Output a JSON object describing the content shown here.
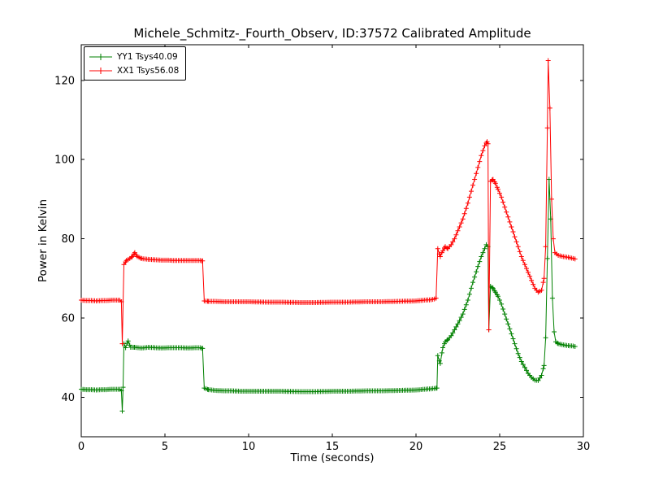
{
  "chart_data": {
    "type": "line",
    "title": "Michele_Schmitz-_Fourth_Observ, ID:37572 Calibrated Amplitude",
    "xlabel": "Time (seconds)",
    "ylabel": "Power in Kelvin",
    "xlim": [
      0,
      30
    ],
    "ylim": [
      30,
      129
    ],
    "x_ticks": [
      0,
      5,
      10,
      15,
      20,
      25,
      30
    ],
    "y_ticks": [
      40,
      60,
      80,
      100,
      120
    ],
    "grid": false,
    "legend_position": "upper-left",
    "marker": "+",
    "sample_interval_seconds": 0.1,
    "series": [
      {
        "name": "YY1 Tsys40.09",
        "color": "#008000",
        "points": [
          [
            0.0,
            42.0
          ],
          [
            0.3,
            41.9
          ],
          [
            0.6,
            41.9
          ],
          [
            0.9,
            41.8
          ],
          [
            1.2,
            41.9
          ],
          [
            1.5,
            41.9
          ],
          [
            1.8,
            42.0
          ],
          [
            2.1,
            42.0
          ],
          [
            2.3,
            42.0
          ],
          [
            2.4,
            41.6
          ],
          [
            2.45,
            36.5
          ],
          [
            2.5,
            42.5
          ],
          [
            2.55,
            53.5
          ],
          [
            2.65,
            52.5
          ],
          [
            2.8,
            54.2
          ],
          [
            2.95,
            52.6
          ],
          [
            3.2,
            52.6
          ],
          [
            3.6,
            52.4
          ],
          [
            4.0,
            52.6
          ],
          [
            4.4,
            52.5
          ],
          [
            4.8,
            52.4
          ],
          [
            5.2,
            52.5
          ],
          [
            5.6,
            52.5
          ],
          [
            6.0,
            52.5
          ],
          [
            6.4,
            52.4
          ],
          [
            6.8,
            52.5
          ],
          [
            7.1,
            52.5
          ],
          [
            7.25,
            52.3
          ],
          [
            7.35,
            42.3
          ],
          [
            7.6,
            41.9
          ],
          [
            8.0,
            41.7
          ],
          [
            8.5,
            41.6
          ],
          [
            9.0,
            41.6
          ],
          [
            9.5,
            41.5
          ],
          [
            10.0,
            41.5
          ],
          [
            11.0,
            41.5
          ],
          [
            12.0,
            41.5
          ],
          [
            13.0,
            41.4
          ],
          [
            14.0,
            41.4
          ],
          [
            15.0,
            41.5
          ],
          [
            16.0,
            41.5
          ],
          [
            17.0,
            41.6
          ],
          [
            18.0,
            41.6
          ],
          [
            19.0,
            41.7
          ],
          [
            20.0,
            41.8
          ],
          [
            20.5,
            42.0
          ],
          [
            20.9,
            42.1
          ],
          [
            21.1,
            42.2
          ],
          [
            21.25,
            42.3
          ],
          [
            21.3,
            50.5
          ],
          [
            21.45,
            48.5
          ],
          [
            21.6,
            52.5
          ],
          [
            21.75,
            54.0
          ],
          [
            21.9,
            54.5
          ],
          [
            22.1,
            55.5
          ],
          [
            22.3,
            57.0
          ],
          [
            22.5,
            58.5
          ],
          [
            22.8,
            61.0
          ],
          [
            23.1,
            64.5
          ],
          [
            23.4,
            69.0
          ],
          [
            23.7,
            73.0
          ],
          [
            23.9,
            75.5
          ],
          [
            24.1,
            77.5
          ],
          [
            24.2,
            78.5
          ],
          [
            24.3,
            78.0
          ],
          [
            24.35,
            57.0
          ],
          [
            24.45,
            68.0
          ],
          [
            24.6,
            67.5
          ],
          [
            24.75,
            66.5
          ],
          [
            24.9,
            65.5
          ],
          [
            25.1,
            63.5
          ],
          [
            25.3,
            61.0
          ],
          [
            25.5,
            58.5
          ],
          [
            25.7,
            56.0
          ],
          [
            25.9,
            53.5
          ],
          [
            26.1,
            51.0
          ],
          [
            26.3,
            49.0
          ],
          [
            26.5,
            47.5
          ],
          [
            26.7,
            46.0
          ],
          [
            26.9,
            45.0
          ],
          [
            27.1,
            44.3
          ],
          [
            27.3,
            44.2
          ],
          [
            27.5,
            45.5
          ],
          [
            27.65,
            48.0
          ],
          [
            27.75,
            55.0
          ],
          [
            27.85,
            75.0
          ],
          [
            27.95,
            95.0
          ],
          [
            28.05,
            85.0
          ],
          [
            28.15,
            65.0
          ],
          [
            28.25,
            56.5
          ],
          [
            28.35,
            54.0
          ],
          [
            28.5,
            53.5
          ],
          [
            28.8,
            53.2
          ],
          [
            29.1,
            53.0
          ],
          [
            29.4,
            52.9
          ],
          [
            29.5,
            52.8
          ]
        ]
      },
      {
        "name": "XX1 Tsys56.08",
        "color": "#ff0000",
        "points": [
          [
            0.0,
            64.5
          ],
          [
            0.3,
            64.4
          ],
          [
            0.6,
            64.4
          ],
          [
            0.9,
            64.3
          ],
          [
            1.2,
            64.4
          ],
          [
            1.5,
            64.4
          ],
          [
            1.8,
            64.5
          ],
          [
            2.1,
            64.5
          ],
          [
            2.3,
            64.5
          ],
          [
            2.4,
            64.1
          ],
          [
            2.45,
            53.5
          ],
          [
            2.55,
            73.5
          ],
          [
            2.7,
            74.5
          ],
          [
            2.9,
            75.0
          ],
          [
            3.05,
            75.5
          ],
          [
            3.2,
            76.5
          ],
          [
            3.35,
            75.5
          ],
          [
            3.6,
            75.0
          ],
          [
            4.0,
            74.8
          ],
          [
            4.4,
            74.7
          ],
          [
            4.8,
            74.6
          ],
          [
            5.2,
            74.6
          ],
          [
            5.6,
            74.5
          ],
          [
            6.0,
            74.5
          ],
          [
            6.4,
            74.5
          ],
          [
            6.8,
            74.5
          ],
          [
            7.1,
            74.5
          ],
          [
            7.25,
            74.4
          ],
          [
            7.35,
            64.3
          ],
          [
            7.6,
            64.2
          ],
          [
            8.0,
            64.2
          ],
          [
            8.5,
            64.1
          ],
          [
            9.0,
            64.1
          ],
          [
            9.5,
            64.1
          ],
          [
            10.0,
            64.1
          ],
          [
            11.0,
            64.0
          ],
          [
            12.0,
            64.0
          ],
          [
            13.0,
            63.9
          ],
          [
            14.0,
            63.9
          ],
          [
            15.0,
            64.0
          ],
          [
            16.0,
            64.0
          ],
          [
            17.0,
            64.1
          ],
          [
            18.0,
            64.1
          ],
          [
            19.0,
            64.2
          ],
          [
            20.0,
            64.3
          ],
          [
            20.5,
            64.5
          ],
          [
            20.9,
            64.6
          ],
          [
            21.1,
            64.8
          ],
          [
            21.2,
            65.0
          ],
          [
            21.3,
            77.5
          ],
          [
            21.45,
            75.5
          ],
          [
            21.6,
            77.0
          ],
          [
            21.75,
            78.0
          ],
          [
            21.9,
            77.5
          ],
          [
            22.1,
            78.5
          ],
          [
            22.3,
            80.0
          ],
          [
            22.5,
            82.0
          ],
          [
            22.8,
            85.0
          ],
          [
            23.1,
            89.0
          ],
          [
            23.4,
            93.5
          ],
          [
            23.7,
            98.0
          ],
          [
            23.9,
            101.0
          ],
          [
            24.1,
            103.5
          ],
          [
            24.25,
            104.5
          ],
          [
            24.3,
            104.0
          ],
          [
            24.35,
            57.0
          ],
          [
            24.45,
            94.5
          ],
          [
            24.6,
            95.0
          ],
          [
            24.75,
            94.0
          ],
          [
            24.9,
            92.5
          ],
          [
            25.1,
            90.5
          ],
          [
            25.3,
            88.0
          ],
          [
            25.5,
            85.5
          ],
          [
            25.7,
            83.0
          ],
          [
            25.9,
            80.5
          ],
          [
            26.1,
            78.0
          ],
          [
            26.3,
            75.5
          ],
          [
            26.5,
            73.5
          ],
          [
            26.7,
            71.5
          ],
          [
            26.9,
            69.5
          ],
          [
            27.1,
            67.5
          ],
          [
            27.3,
            66.5
          ],
          [
            27.5,
            67.0
          ],
          [
            27.65,
            70.0
          ],
          [
            27.75,
            78.0
          ],
          [
            27.85,
            108.0
          ],
          [
            27.9,
            125.0
          ],
          [
            28.0,
            113.0
          ],
          [
            28.1,
            90.0
          ],
          [
            28.2,
            80.0
          ],
          [
            28.3,
            76.5
          ],
          [
            28.5,
            75.8
          ],
          [
            28.8,
            75.5
          ],
          [
            29.1,
            75.3
          ],
          [
            29.4,
            75.0
          ],
          [
            29.5,
            74.9
          ]
        ]
      }
    ]
  }
}
